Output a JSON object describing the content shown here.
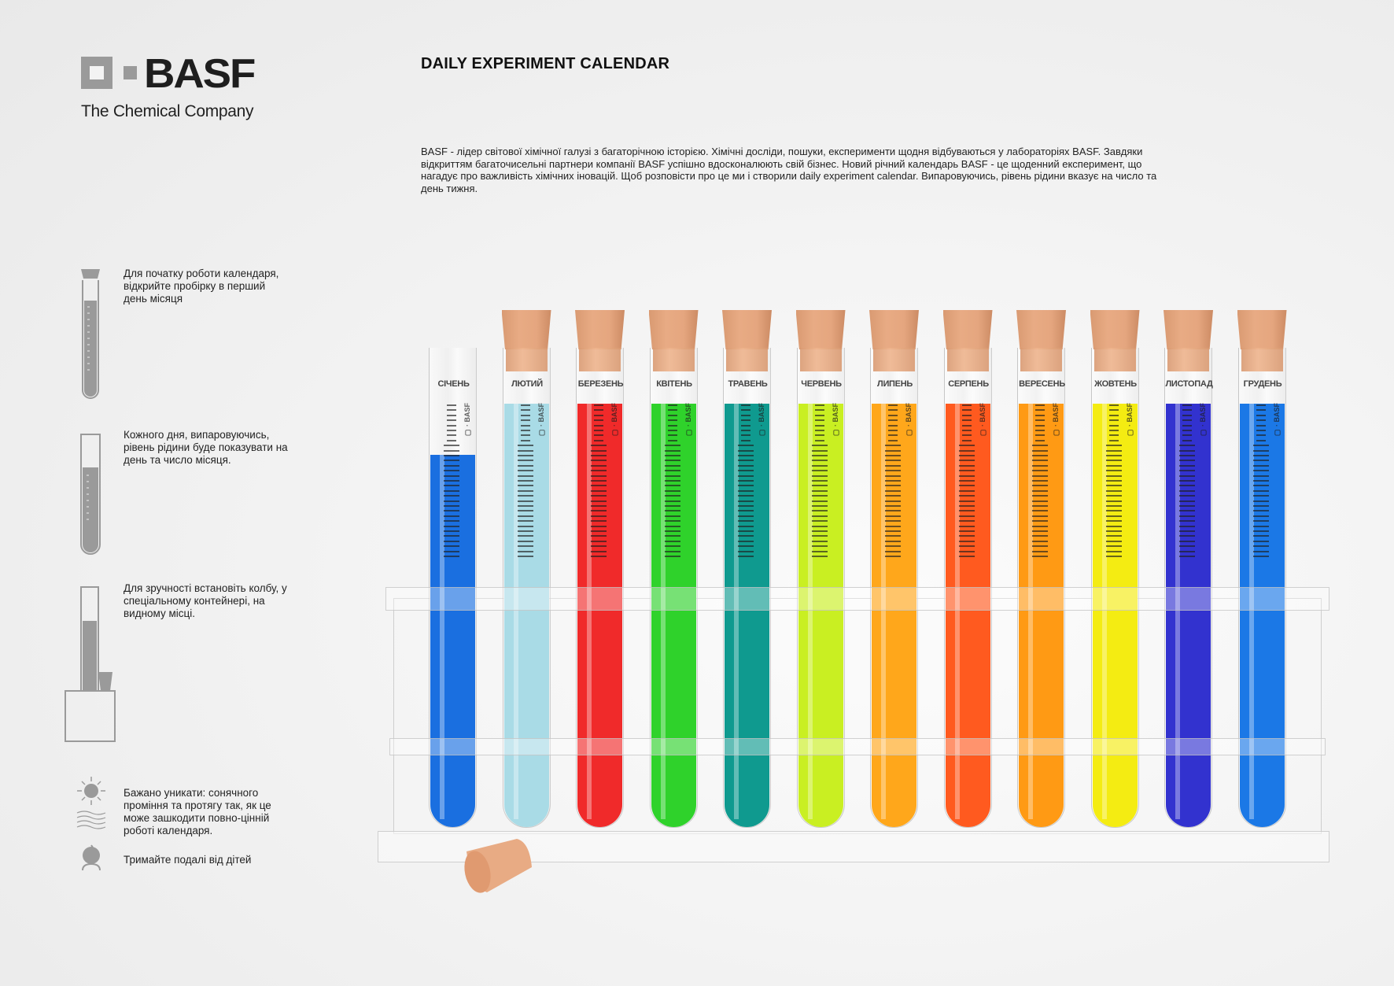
{
  "brand": {
    "name": "BASF",
    "tagline": "The Chemical Company",
    "logo_color": "#9a9a9a"
  },
  "header": {
    "title": "DAILY EXPERIMENT CALENDAR"
  },
  "description": "BASF - лідер світової хімічної галузі з багаторічною історією. Хімічні досліди, пошуки, експерименти щодня відбуваються у лабораторіях BASF. Завдяки відкриттям багаточисельні партнери компанії BASF успішно вдосконалюють свій бізнес. Новий річний календарь BASF - це щоденний експеримент, що нагадує про важливість хімічних іновацій. Щоб розповісти про це ми і створили daily experiment calendar. Випаровуючись, рівень рідини вказує на число та день тижня.",
  "instructions": [
    {
      "icon": "corked-tube-icon",
      "text": "Для початку роботи календаря, відкрийте пробірку в перший день місяця"
    },
    {
      "icon": "open-tube-icon",
      "text": "Кожного дня, випаровуючись, рівень рідини буде показувати на день та число місяця."
    },
    {
      "icon": "tube-in-container-icon",
      "text": "Для зручності встановіть колбу, у спеціальному контейнері, на видному місці."
    },
    {
      "icon": "sun-and-wind-icon",
      "text": "Бажано уникати: сонячного проміння та протягу так, як це може зашкодити повно-цінній роботі календаря."
    },
    {
      "icon": "child-icon",
      "text": "Тримайте подалі від дітей"
    }
  ],
  "tubes": [
    {
      "month": "СІЧЕНЬ",
      "color": "#1a6fe0",
      "corked": false,
      "fill": 0.78
    },
    {
      "month": "ЛЮТИЙ",
      "color": "#a9dbe6",
      "corked": true,
      "fill": 1
    },
    {
      "month": "БЕРЕЗЕНЬ",
      "color": "#f02a2a",
      "corked": true,
      "fill": 1
    },
    {
      "month": "КВІТЕНЬ",
      "color": "#2fd22b",
      "corked": true,
      "fill": 1
    },
    {
      "month": "ТРАВЕНЬ",
      "color": "#0f9a8f",
      "corked": true,
      "fill": 1
    },
    {
      "month": "ЧЕРВЕНЬ",
      "color": "#c9ef22",
      "corked": true,
      "fill": 1
    },
    {
      "month": "ЛИПЕНЬ",
      "color": "#ffa71b",
      "corked": true,
      "fill": 1
    },
    {
      "month": "СЕРПЕНЬ",
      "color": "#ff5a1f",
      "corked": true,
      "fill": 1
    },
    {
      "month": "ВЕРЕСЕНЬ",
      "color": "#ff9a14",
      "corked": true,
      "fill": 1
    },
    {
      "month": "ЖОВТЕНЬ",
      "color": "#f4ec12",
      "corked": true,
      "fill": 1
    },
    {
      "month": "ЛИСТОПАД",
      "color": "#3232cf",
      "corked": true,
      "fill": 1
    },
    {
      "month": "ГРУДЕНЬ",
      "color": "#1b78e6",
      "corked": true,
      "fill": 1
    }
  ],
  "tube_mark": "BASF",
  "cork_color": "#e8ab84"
}
